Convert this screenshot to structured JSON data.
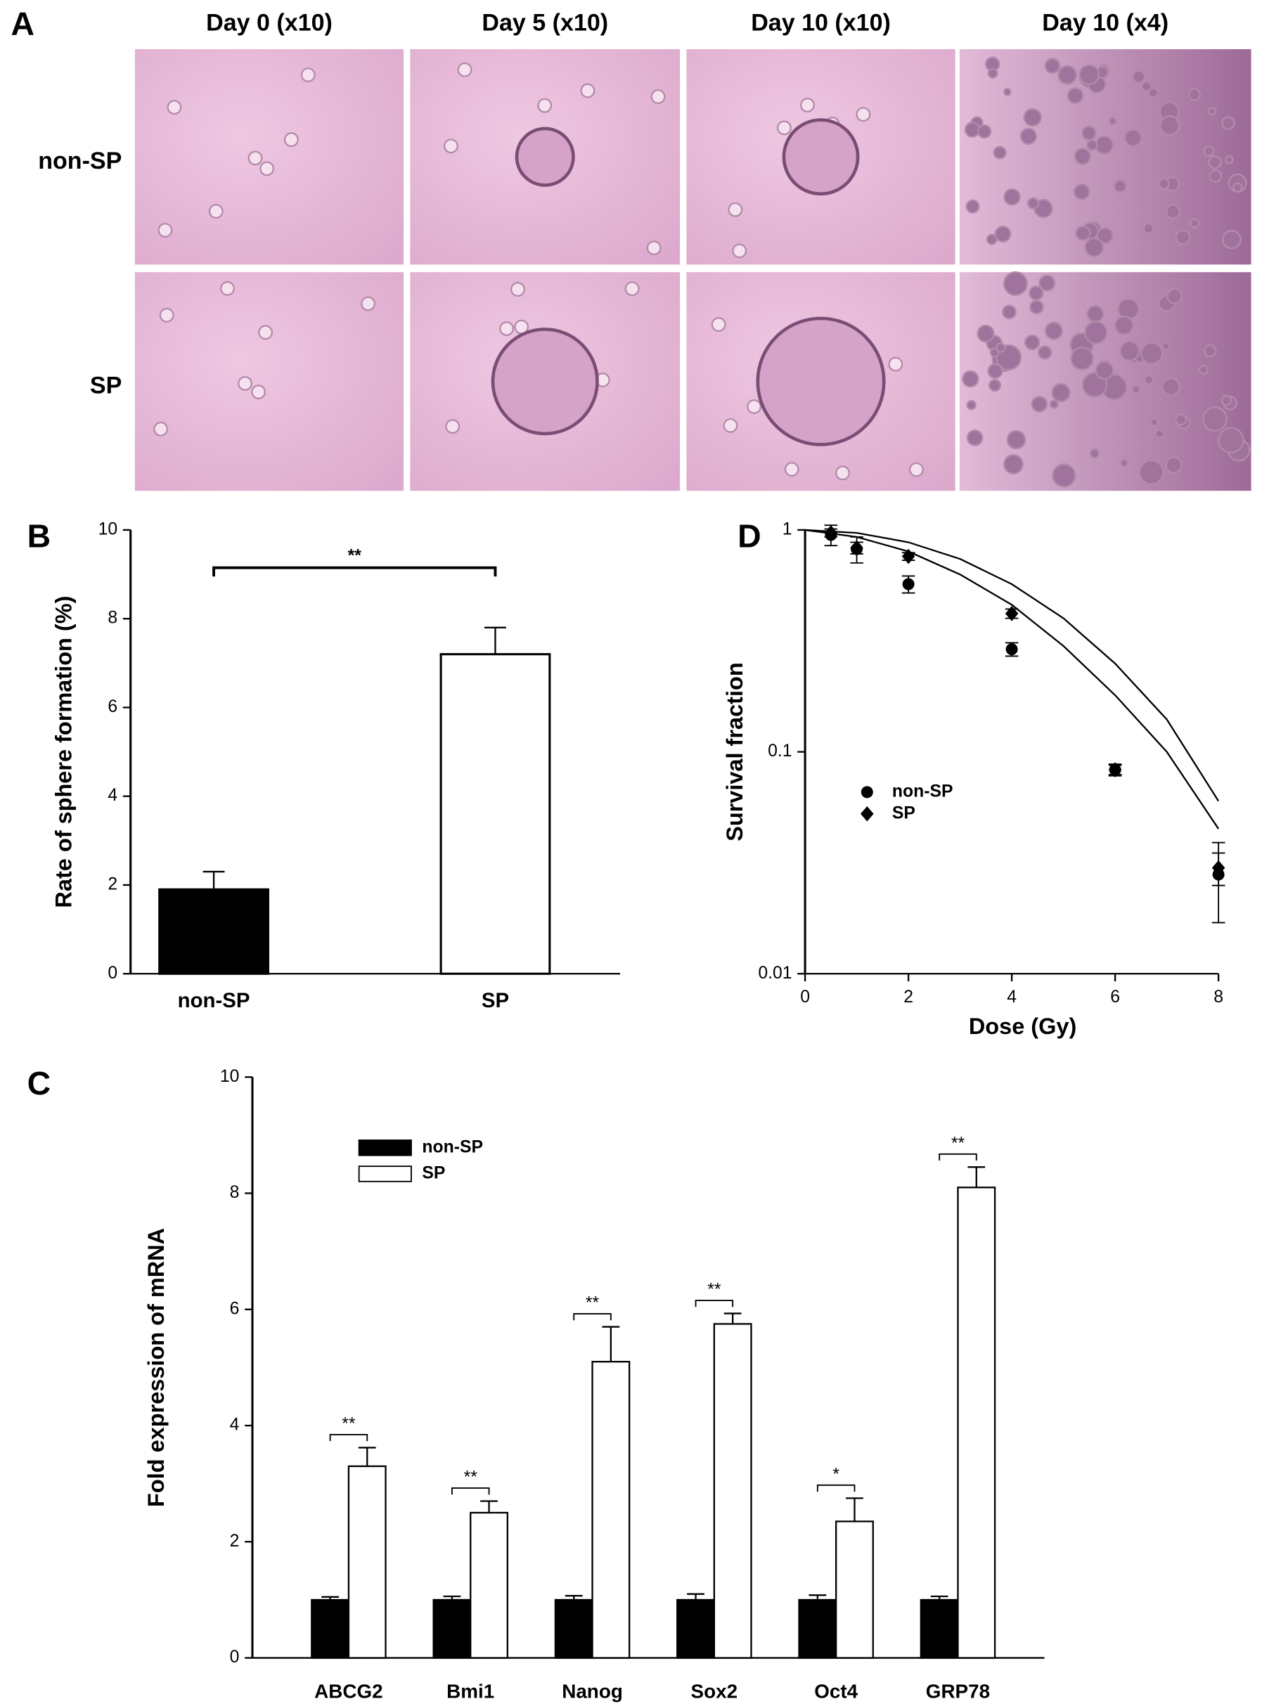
{
  "panel_a": {
    "label": "A",
    "columns": [
      "Day 0 (x10)",
      "Day 5 (x10)",
      "Day 10 (x10)",
      "Day 10 (x4)"
    ],
    "rows": [
      "non-SP",
      "SP"
    ]
  },
  "chart_data": [
    {
      "type": "bar",
      "panel_label": "B",
      "ylabel": "Rate of sphere formation (%)",
      "categories": [
        "non-SP",
        "SP"
      ],
      "values": [
        1.9,
        7.2
      ],
      "errors": [
        0.4,
        0.6
      ],
      "colors": [
        "#000000",
        "#ffffff"
      ],
      "ylim": [
        0,
        10
      ],
      "yticks": [
        0,
        2,
        4,
        6,
        8,
        10
      ],
      "significance": "**"
    },
    {
      "type": "scatter",
      "panel_label": "D",
      "xlabel": "Dose (Gy)",
      "ylabel": "Survival fraction",
      "log_y": true,
      "xlim": [
        0,
        8
      ],
      "ylim": [
        0.01,
        1
      ],
      "xticks": [
        0,
        2,
        4,
        6,
        8
      ],
      "yticks": [
        0.01,
        0.1,
        1
      ],
      "legend": "center-left",
      "series": [
        {
          "name": "non-SP",
          "marker": "circle",
          "color": "#000000",
          "x": [
            0.5,
            1,
            2,
            4,
            6,
            8
          ],
          "values": [
            0.95,
            0.82,
            0.57,
            0.29,
            0.083,
            0.028
          ],
          "errors": [
            0.1,
            0.11,
            0.05,
            0.02,
            0.005,
            0.011
          ]
        },
        {
          "name": "SP",
          "marker": "diamond",
          "color": "#000000",
          "x": [
            0.5,
            1,
            2,
            4,
            6,
            8
          ],
          "values": [
            0.97,
            0.83,
            0.76,
            0.42,
            0.083,
            0.03
          ],
          "errors": [
            0.04,
            0.05,
            0.03,
            0.02,
            0.004,
            0.005
          ]
        }
      ],
      "fit_lines": [
        {
          "x": [
            0,
            1,
            2,
            3,
            4,
            5,
            6,
            7,
            8
          ],
          "values": [
            1,
            0.93,
            0.8,
            0.63,
            0.46,
            0.3,
            0.18,
            0.1,
            0.045
          ]
        },
        {
          "x": [
            0,
            1,
            2,
            3,
            4,
            5,
            6,
            7,
            8
          ],
          "values": [
            1,
            0.97,
            0.88,
            0.74,
            0.57,
            0.4,
            0.25,
            0.14,
            0.06
          ]
        }
      ]
    },
    {
      "type": "grouped_bar",
      "panel_label": "C",
      "ylabel": "Fold expression of mRNA",
      "legend": "upper-left",
      "categories": [
        "ABCG2",
        "Bmi1",
        "Nanog",
        "Sox2",
        "Oct4",
        "GRP78"
      ],
      "series": [
        {
          "name": "non-SP",
          "color": "#000000",
          "values": [
            1,
            1,
            1,
            1,
            1,
            1
          ],
          "errors": [
            0.05,
            0.06,
            0.07,
            0.1,
            0.08,
            0.06
          ]
        },
        {
          "name": "SP",
          "color": "#ffffff",
          "values": [
            3.3,
            2.5,
            5.1,
            5.75,
            2.35,
            8.1
          ],
          "errors": [
            0.32,
            0.2,
            0.6,
            0.18,
            0.4,
            0.35
          ]
        }
      ],
      "significance": [
        "**",
        "**",
        "**",
        "**",
        "*",
        "**"
      ],
      "ylim": [
        0,
        10
      ],
      "yticks": [
        0,
        2,
        4,
        6,
        8,
        10
      ]
    }
  ]
}
